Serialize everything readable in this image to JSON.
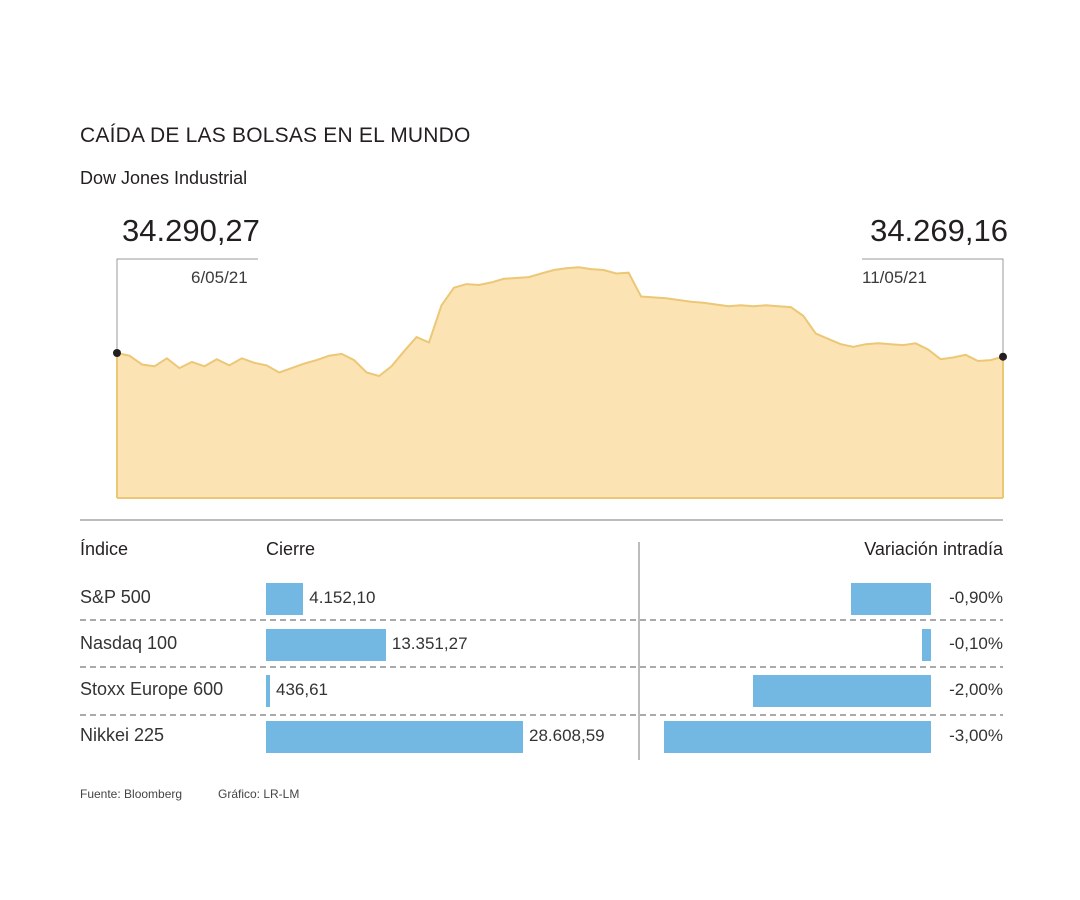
{
  "header": {
    "title": "CAÍDA DE LAS BOLSAS EN EL MUNDO",
    "subtitle": "Dow Jones Industrial"
  },
  "chart_data": [
    {
      "type": "area",
      "series": [
        {
          "name": "Dow Jones Industrial",
          "start_date": "6/05/21",
          "end_date": "11/05/21",
          "start_label": "34.290,27",
          "end_label": "34.269,16",
          "start": 34290.27,
          "end": 34269.16,
          "values": [
            34290.27,
            34275,
            34225,
            34215,
            34260,
            34205,
            34240,
            34215,
            34255,
            34220,
            34260,
            34235,
            34220,
            34180,
            34205,
            34230,
            34250,
            34275,
            34285,
            34250,
            34180,
            34160,
            34215,
            34300,
            34380,
            34350,
            34560,
            34660,
            34680,
            34675,
            34690,
            34710,
            34715,
            34720,
            34740,
            34760,
            34770,
            34775,
            34765,
            34760,
            34740,
            34745,
            34610,
            34605,
            34600,
            34590,
            34580,
            34575,
            34565,
            34555,
            34560,
            34555,
            34560,
            34555,
            34550,
            34500,
            34400,
            34370,
            34340,
            34325,
            34340,
            34345,
            34340,
            34335,
            34345,
            34310,
            34255,
            34265,
            34280,
            34245,
            34250,
            34269.16
          ]
        }
      ],
      "ylim": [
        33000,
        35000
      ],
      "colors": {
        "fill": "#fbe3b3",
        "stroke": "#ecc776",
        "marker": "#231f20"
      }
    },
    {
      "type": "bar",
      "name": "Cierre",
      "categories": [
        "S&P 500",
        "Nasdaq 100",
        "Stoxx Europe 600",
        "Nikkei 225"
      ],
      "values": [
        4152.1,
        13351.27,
        436.61,
        28608.59
      ],
      "labels": [
        "4.152,10",
        "13.351,27",
        "436,61",
        "28.608,59"
      ],
      "color": "#72b8e3"
    },
    {
      "type": "bar",
      "name": "Variación intradía",
      "categories": [
        "S&P 500",
        "Nasdaq 100",
        "Stoxx Europe 600",
        "Nikkei 225"
      ],
      "values": [
        -0.9,
        -0.1,
        -2.0,
        -3.0
      ],
      "labels": [
        "-0,90%",
        "-0,10%",
        "-2,00%",
        "-3,00%"
      ],
      "color": "#72b8e3"
    }
  ],
  "table": {
    "headers": {
      "indice": "Índice",
      "cierre": "Cierre",
      "variacion": "Variación intradía"
    }
  },
  "footer": {
    "source": "Fuente: Bloomberg",
    "credit": "Gráfico: LR-LM"
  }
}
